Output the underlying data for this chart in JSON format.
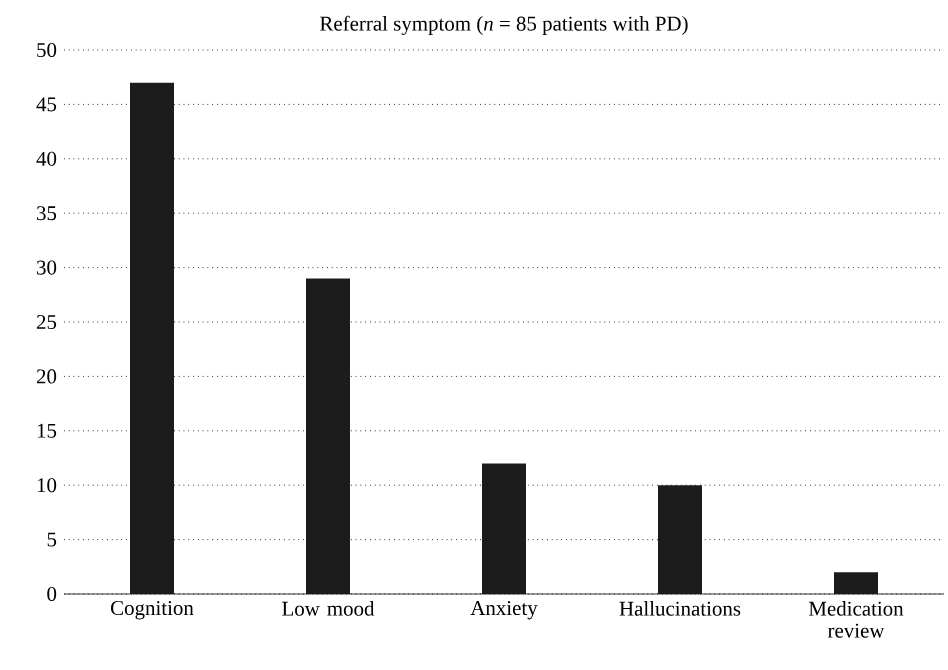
{
  "chart_data": {
    "type": "bar",
    "title": "Referral symptom (*n* = 85 patients with PD)",
    "categories": [
      "Cognition",
      "Low mood",
      "Anxiety",
      "Hallucinations",
      "Medication review"
    ],
    "values": [
      47,
      29,
      12,
      10,
      2
    ],
    "color": "#1c1c1c",
    "ylim": [
      0,
      50
    ],
    "yticks": [
      0,
      5,
      10,
      15,
      20,
      25,
      30,
      35,
      40,
      45,
      50
    ],
    "grid": "y"
  }
}
